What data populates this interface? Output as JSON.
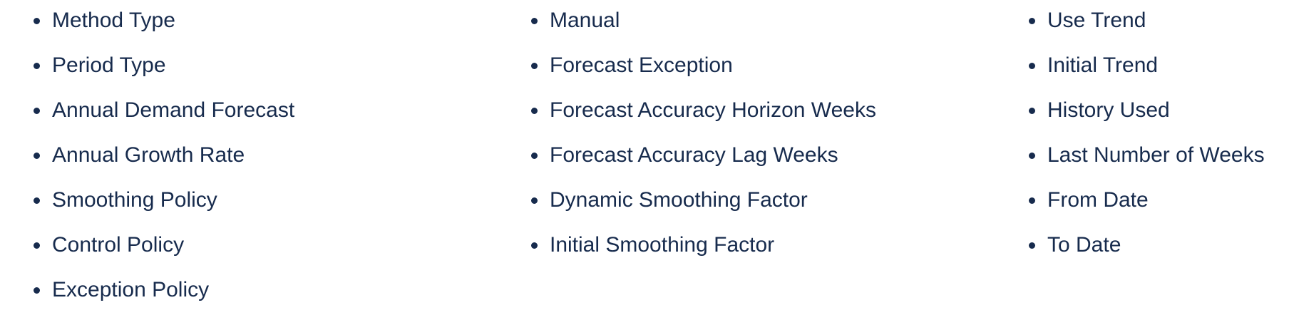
{
  "columns": [
    {
      "items": [
        "Method Type",
        "Period Type",
        "Annual Demand Forecast",
        "Annual Growth Rate",
        "Smoothing Policy",
        "Control Policy",
        "Exception Policy"
      ]
    },
    {
      "items": [
        "Manual",
        "Forecast Exception",
        "Forecast Accuracy Horizon Weeks",
        "Forecast Accuracy Lag Weeks",
        "Dynamic Smoothing Factor",
        "Initial Smoothing Factor"
      ]
    },
    {
      "items": [
        "Use Trend",
        "Initial Trend",
        "History Used",
        "Last Number of Weeks",
        "From Date",
        "To Date"
      ]
    }
  ],
  "colors": {
    "text": "#172b4d",
    "background": "#ffffff"
  }
}
